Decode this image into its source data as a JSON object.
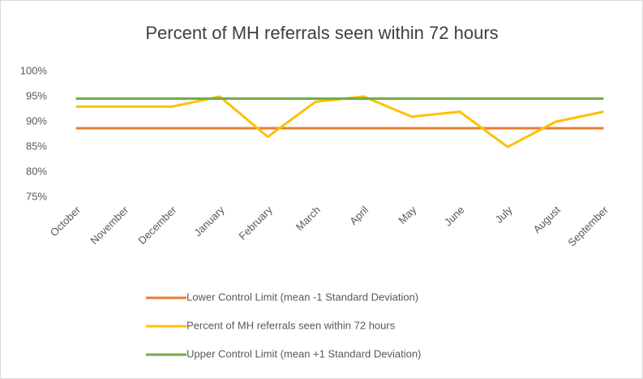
{
  "chart_data": {
    "type": "line",
    "title": "Percent of MH referrals seen within 72 hours",
    "categories": [
      "October",
      "November",
      "December",
      "January",
      "February",
      "March",
      "April",
      "May",
      "June",
      "July",
      "August",
      "September"
    ],
    "series": [
      {
        "name": "Lower Control Limit (mean -1 Standard Deviation)",
        "color": "#ed7d31",
        "values": [
          88.7,
          88.7,
          88.7,
          88.7,
          88.7,
          88.7,
          88.7,
          88.7,
          88.7,
          88.7,
          88.7,
          88.7
        ]
      },
      {
        "name": "Percent of MH referrals seen within 72 hours",
        "color": "#ffc000",
        "values": [
          93,
          93,
          93,
          95,
          87,
          94,
          95,
          91,
          92,
          85,
          90,
          92
        ]
      },
      {
        "name": "Upper Control Limit (mean +1 Standard Deviation)",
        "color": "#70ad47",
        "values": [
          94.6,
          94.6,
          94.6,
          94.6,
          94.6,
          94.6,
          94.6,
          94.6,
          94.6,
          94.6,
          94.6,
          94.6
        ]
      }
    ],
    "ylim": [
      75,
      100
    ],
    "yticks": [
      {
        "value": 75,
        "label": "75%"
      },
      {
        "value": 80,
        "label": "80%"
      },
      {
        "value": 85,
        "label": "85%"
      },
      {
        "value": 90,
        "label": "90%"
      },
      {
        "value": 95,
        "label": "95%"
      },
      {
        "value": 100,
        "label": "100%"
      }
    ],
    "grid": false,
    "legend": "bottom"
  }
}
